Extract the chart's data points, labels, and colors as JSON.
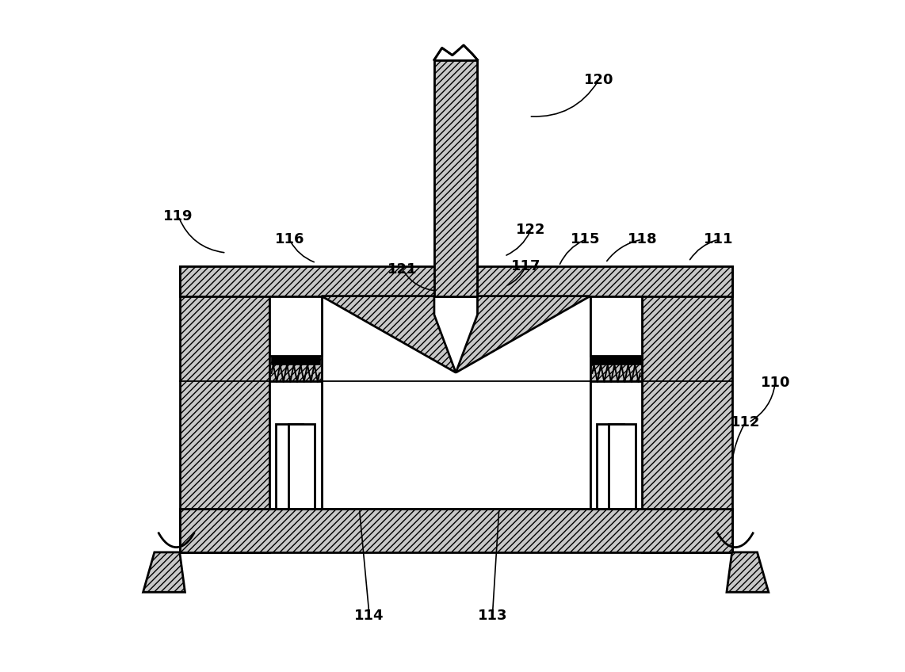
{
  "bg": "#ffffff",
  "hatch_fc": "#c8c8c8",
  "fig_w": 11.42,
  "fig_h": 8.48,
  "lw": 2.0,
  "lw_thin": 1.3,
  "label_fontsize": 13
}
